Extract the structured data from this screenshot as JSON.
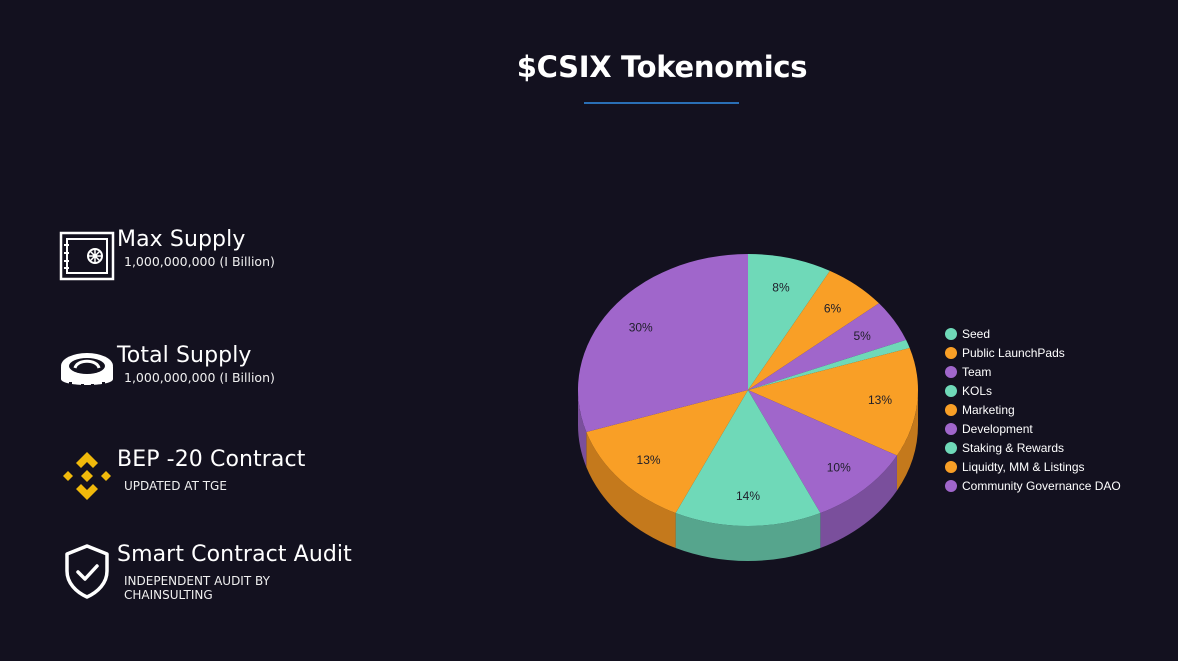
{
  "header": {
    "title": "$CSIX Tokenomics",
    "underline_color": "#2a6fb5"
  },
  "stats": [
    {
      "icon": "safe-vault-icon",
      "label": "Max Supply",
      "sub": "1,000,000,000 (I Billion)"
    },
    {
      "icon": "coin-icon",
      "label": "Total Supply",
      "sub": "1,000,000,000 (I Billion)"
    },
    {
      "icon": "binance-bnb-icon",
      "label": "BEP -20 Contract",
      "sub": "UPDATED AT TGE"
    },
    {
      "icon": "shield-check-icon",
      "label": "Smart Contract Audit",
      "sub_line1": "INDEPENDENT AUDIT BY",
      "sub_line2": "CHAINSULTING"
    }
  ],
  "colors": {
    "background": "#13111f",
    "teal": "#6fd9b8",
    "orange": "#f99f26",
    "purple": "#a066cb",
    "binance_yellow": "#f0b90b"
  },
  "chart_data": {
    "type": "pie",
    "style": "3d",
    "title": "$CSIX Tokenomics",
    "legend_position": "right",
    "categories": [
      "Seed",
      "Public LaunchPads",
      "Team",
      "KOLs",
      "Marketing",
      "Development",
      "Staking & Rewards",
      "Liquidty, MM & Listings",
      "Community Governance DAO"
    ],
    "values": [
      8,
      6,
      5,
      1,
      13,
      10,
      14,
      13,
      30
    ],
    "labels": [
      "8%",
      "6%",
      "5%",
      "",
      "13%",
      "10%",
      "14%",
      "13%",
      "30%"
    ],
    "slice_colors": [
      "#6fd9b8",
      "#f99f26",
      "#a066cb",
      "#6fd9b8",
      "#f99f26",
      "#a066cb",
      "#6fd9b8",
      "#f99f26",
      "#a066cb"
    ],
    "side_colors": [
      "#56a58d",
      "#c4791c",
      "#7a4f9c",
      "#56a58d",
      "#c4791c",
      "#7a4f9c",
      "#56a58d",
      "#c4791c",
      "#7a4f9c"
    ],
    "start_angle_deg": 0,
    "direction": "clockwise"
  }
}
